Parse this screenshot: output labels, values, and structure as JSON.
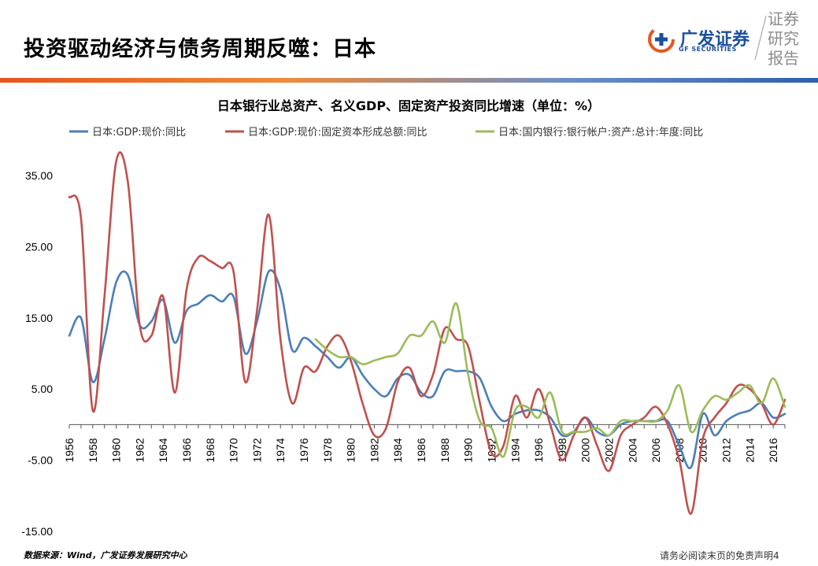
{
  "header": {
    "title": "投资驱动经济与债务周期反噬：日本",
    "logo_cn": "广发证券",
    "logo_en": "GF SECURITIES",
    "report_tag": [
      "证券",
      "研究",
      "报告"
    ],
    "brand_color": "#1b4f9c"
  },
  "footer": {
    "source": "数据来源：Wind，广发证券发展研究中心",
    "disclaimer": "请务必阅读末页的免责声明",
    "page_number": "4"
  },
  "chart_data": {
    "type": "line",
    "title": "日本银行业总资产、名义GDP、固定资产投资同比增速（单位：%）",
    "xlabel": "",
    "ylabel": "",
    "ylim": [
      -15,
      40
    ],
    "xlim": [
      1956,
      2017
    ],
    "yticks": [
      "35.00",
      "25.00",
      "15.00",
      "5.00",
      "-5.00",
      "-15.00"
    ],
    "ytick_values": [
      35,
      25,
      15,
      5,
      -5,
      -15
    ],
    "xticks": [
      "1956",
      "1958",
      "1960",
      "1962",
      "1964",
      "1966",
      "1968",
      "1970",
      "1972",
      "1974",
      "1976",
      "1978",
      "1980",
      "1982",
      "1984",
      "1986",
      "1988",
      "1990",
      "1992",
      "1994",
      "1996",
      "1998",
      "2000",
      "2002",
      "2004",
      "2006",
      "2008",
      "2010",
      "2012",
      "2014",
      "2016"
    ],
    "legend_position": "top",
    "grid": false,
    "series": [
      {
        "name": "日本:GDP:现价:同比",
        "color": "#4a7ebb",
        "x": [
          1956,
          1957,
          1958,
          1959,
          1960,
          1961,
          1962,
          1963,
          1964,
          1965,
          1966,
          1967,
          1968,
          1969,
          1970,
          1971,
          1972,
          1973,
          1974,
          1975,
          1976,
          1977,
          1978,
          1979,
          1980,
          1981,
          1982,
          1983,
          1984,
          1985,
          1986,
          1987,
          1988,
          1989,
          1990,
          1991,
          1992,
          1993,
          1994,
          1995,
          1996,
          1997,
          1998,
          1999,
          2000,
          2001,
          2002,
          2003,
          2004,
          2005,
          2006,
          2007,
          2008,
          2009,
          2010,
          2011,
          2012,
          2013,
          2014,
          2015,
          2016,
          2017
        ],
        "values": [
          12.5,
          15.0,
          6.0,
          12.0,
          20.0,
          21.0,
          14.0,
          14.5,
          17.5,
          11.5,
          16.0,
          17.0,
          18.2,
          17.3,
          18.0,
          10.0,
          14.5,
          21.5,
          19.0,
          10.5,
          12.2,
          11.0,
          9.5,
          8.0,
          9.5,
          7.0,
          5.0,
          4.0,
          6.5,
          7.0,
          4.5,
          4.0,
          7.5,
          7.5,
          7.5,
          6.5,
          2.5,
          0.5,
          1.5,
          2.0,
          2.0,
          1.0,
          -1.5,
          -1.0,
          1.0,
          -1.0,
          -1.5,
          0.0,
          0.5,
          0.5,
          0.5,
          0.5,
          -3.0,
          -6.0,
          1.5,
          -1.5,
          0.5,
          1.5,
          2.0,
          3.0,
          1.0,
          1.5
        ]
      },
      {
        "name": "日本:GDP:现价:固定资本形成总额:同比",
        "color": "#c0504d",
        "x": [
          1956,
          1957,
          1958,
          1959,
          1960,
          1961,
          1962,
          1963,
          1964,
          1965,
          1966,
          1967,
          1968,
          1969,
          1970,
          1971,
          1972,
          1973,
          1974,
          1975,
          1976,
          1977,
          1978,
          1979,
          1980,
          1981,
          1982,
          1983,
          1984,
          1985,
          1986,
          1987,
          1988,
          1989,
          1990,
          1991,
          1992,
          1993,
          1994,
          1995,
          1996,
          1997,
          1998,
          1999,
          2000,
          2001,
          2002,
          2003,
          2004,
          2005,
          2006,
          2007,
          2008,
          2009,
          2010,
          2011,
          2012,
          2013,
          2014,
          2015,
          2016,
          2017
        ],
        "values": [
          32.0,
          29.0,
          2.0,
          18.0,
          37.0,
          34.0,
          14.0,
          12.5,
          18.0,
          4.5,
          19.0,
          23.5,
          23.0,
          22.0,
          21.5,
          6.0,
          16.0,
          29.5,
          12.0,
          3.0,
          8.0,
          7.5,
          11.0,
          12.5,
          9.0,
          3.0,
          -1.5,
          -0.5,
          6.0,
          8.0,
          4.0,
          7.0,
          13.5,
          12.0,
          11.0,
          3.0,
          -4.0,
          -3.0,
          4.0,
          1.0,
          5.0,
          0.0,
          -5.0,
          -1.5,
          1.0,
          -3.0,
          -6.5,
          -1.5,
          0.0,
          1.0,
          2.5,
          0.0,
          -5.0,
          -12.5,
          -2.0,
          1.0,
          3.0,
          5.5,
          5.0,
          3.0,
          0.0,
          3.5
        ]
      },
      {
        "name": "日本:国内银行:银行帐户:资产:总计:年度:同比",
        "color": "#9bbb59",
        "x": [
          1977,
          1978,
          1979,
          1980,
          1981,
          1982,
          1983,
          1984,
          1985,
          1986,
          1987,
          1988,
          1989,
          1990,
          1991,
          1992,
          1993,
          1994,
          1995,
          1996,
          1997,
          1998,
          1999,
          2000,
          2001,
          2002,
          2003,
          2004,
          2005,
          2006,
          2007,
          2008,
          2009,
          2010,
          2011,
          2012,
          2013,
          2014,
          2015,
          2016,
          2017
        ],
        "values": [
          12.0,
          10.5,
          9.5,
          9.5,
          8.5,
          9.0,
          9.5,
          10.0,
          12.5,
          12.5,
          14.5,
          11.5,
          17.0,
          7.0,
          0.5,
          -0.5,
          -4.5,
          2.0,
          2.5,
          1.0,
          4.5,
          -1.0,
          -1.0,
          -1.0,
          -0.5,
          -1.5,
          0.5,
          0.5,
          0.5,
          0.5,
          2.0,
          5.5,
          -1.0,
          2.0,
          4.0,
          3.5,
          4.5,
          5.5,
          3.0,
          6.5,
          2.5
        ]
      }
    ]
  }
}
